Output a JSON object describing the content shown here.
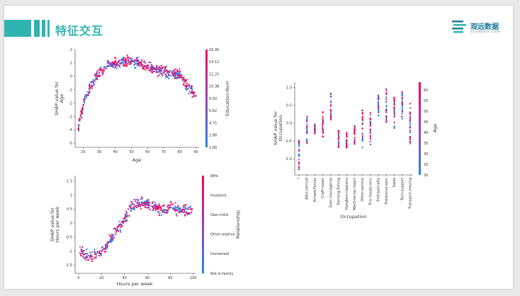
{
  "slide": {
    "title": "特征交互",
    "logo": {
      "name": "观远数据",
      "sub": "GUANDATA.COM"
    }
  },
  "colors": {
    "accent": "#2fb4b1",
    "low": "#1e88e5",
    "mid": "#9b3fc2",
    "high": "#ff0052"
  },
  "chart_data": [
    {
      "id": "age",
      "type": "scatter",
      "xlabel": "Age",
      "ylabel": [
        "SHAP value for",
        "Age"
      ],
      "xticks": [
        20,
        30,
        40,
        50,
        60,
        70,
        80,
        90
      ],
      "yticks": [
        2,
        1,
        0,
        -1,
        -2,
        -3,
        -4,
        -5
      ],
      "xlim": [
        15,
        92
      ],
      "ylim": [
        -5.3,
        2
      ],
      "colorbar": {
        "label": "Education-Num",
        "ticks": [
          "16.00",
          "14.12",
          "12.25",
          "10.38",
          "8.50",
          "6.62",
          "4.75",
          "2.88",
          "1.00"
        ]
      },
      "trend": [
        [
          17,
          -3.9
        ],
        [
          18,
          -3.2
        ],
        [
          20,
          -2.2
        ],
        [
          22,
          -1.4
        ],
        [
          25,
          -0.6
        ],
        [
          30,
          0.3
        ],
        [
          35,
          0.8
        ],
        [
          40,
          1.0
        ],
        [
          45,
          1.1
        ],
        [
          50,
          1.1
        ],
        [
          55,
          1.0
        ],
        [
          60,
          0.7
        ],
        [
          65,
          0.5
        ],
        [
          70,
          0.4
        ],
        [
          75,
          0.2
        ],
        [
          80,
          0.1
        ],
        [
          85,
          -0.8
        ],
        [
          90,
          -1.5
        ]
      ]
    },
    {
      "id": "occupation",
      "type": "scatter",
      "xlabel": "Occupation",
      "ylabel": [
        "SHAP value for",
        "Occupation"
      ],
      "categories": [
        "?",
        "Adm-clerical",
        "Armed-Forces",
        "Craft-repair",
        "Exec-managerial",
        "Farming-fishing",
        "Handlers-cleaners",
        "Machine-op-inspct",
        "Other-service",
        "Priv-house-serv",
        "Prof-specialty",
        "Protective-serv",
        "Sales",
        "Tech-support",
        "Transport-moving"
      ],
      "yticks": [
        1.0,
        0.5,
        0.0,
        -0.5,
        -1.0
      ],
      "ylim": [
        -1.45,
        1.15
      ],
      "ranges": [
        [
          -1.4,
          -0.3
        ],
        [
          -0.6,
          0.2
        ],
        [
          -0.3,
          0.0
        ],
        [
          -0.4,
          0.35
        ],
        [
          0.05,
          0.85
        ],
        [
          -0.7,
          -0.2
        ],
        [
          -0.7,
          -0.25
        ],
        [
          -0.6,
          -0.05
        ],
        [
          -0.75,
          0.4
        ],
        [
          -0.6,
          0.3
        ],
        [
          0.2,
          0.8
        ],
        [
          0.0,
          1.05
        ],
        [
          -0.2,
          0.75
        ],
        [
          0.1,
          0.9
        ],
        [
          -0.6,
          0.55
        ]
      ],
      "colorbar": {
        "label": "Age",
        "ticks": [
          "60",
          "55",
          "50",
          "45",
          "40",
          "35",
          "30",
          "25",
          "20"
        ]
      }
    },
    {
      "id": "hours",
      "type": "scatter",
      "xlabel": "Hours per week",
      "ylabel": [
        "SHAP value for",
        "Hours per week"
      ],
      "xticks": [
        0,
        20,
        40,
        60,
        80,
        100
      ],
      "yticks": [
        1.5,
        1.0,
        0.5,
        0.0,
        -0.5,
        -1.0,
        -1.5
      ],
      "xlim": [
        -3,
        102
      ],
      "ylim": [
        -1.8,
        1.7
      ],
      "colorbar": {
        "label": "Relationship",
        "ticks": [
          "Wife",
          "Husband",
          "Own-child",
          "Other-relative",
          "Unmarried",
          "Not-in-family"
        ]
      },
      "trend": [
        [
          1,
          -1.0
        ],
        [
          5,
          -1.1
        ],
        [
          10,
          -1.2
        ],
        [
          15,
          -1.1
        ],
        [
          20,
          -1.0
        ],
        [
          25,
          -0.8
        ],
        [
          30,
          -0.5
        ],
        [
          35,
          -0.2
        ],
        [
          40,
          0.1
        ],
        [
          45,
          0.5
        ],
        [
          50,
          0.7
        ],
        [
          55,
          0.7
        ],
        [
          60,
          0.7
        ],
        [
          65,
          0.6
        ],
        [
          70,
          0.5
        ],
        [
          75,
          0.5
        ],
        [
          80,
          0.6
        ],
        [
          85,
          0.5
        ],
        [
          90,
          0.5
        ],
        [
          99,
          0.4
        ]
      ]
    }
  ]
}
